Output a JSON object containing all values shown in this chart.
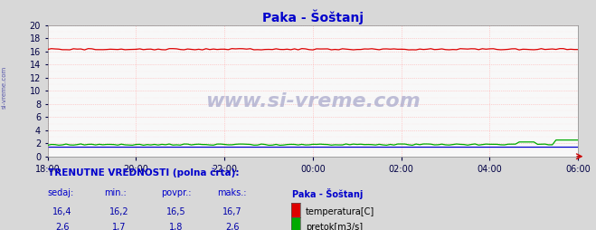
{
  "title": "Paka - Šoštanj",
  "bg_color": "#d8d8d8",
  "plot_bg_color": "#f8f8f8",
  "x_tick_labels": [
    "18:00",
    "20:00",
    "22:00",
    "00:00",
    "02:00",
    "04:00",
    "06:00"
  ],
  "x_tick_positions": [
    0,
    24,
    48,
    72,
    96,
    120,
    144
  ],
  "n_points": 145,
  "ylim": [
    0,
    20
  ],
  "yticks": [
    0,
    2,
    4,
    6,
    8,
    10,
    12,
    14,
    16,
    18,
    20
  ],
  "temp_color": "#dd0000",
  "flow_color": "#00aa00",
  "blue_line_color": "#0000cc",
  "grid_color_major": "#ffaaaa",
  "grid_color_minor": "#ffdddd",
  "title_color": "#0000cc",
  "watermark": "www.si-vreme.com",
  "watermark_color": "#aaaacc",
  "side_label": "si-vreme.com",
  "legend_title": "Paka - Šoštanj",
  "legend_items": [
    "temperatura[C]",
    "pretok[m3/s]"
  ],
  "legend_colors": [
    "#dd0000",
    "#00aa00"
  ],
  "stats_label": "TRENUTNE VREDNOSTI (polna črta):",
  "stats_cols": [
    "sedaj:",
    "min.:",
    "povpr.:",
    "maks.:"
  ],
  "stats_temp": [
    "16,4",
    "16,2",
    "16,5",
    "16,7"
  ],
  "stats_flow": [
    "2,6",
    "1,7",
    "1,8",
    "2,6"
  ]
}
